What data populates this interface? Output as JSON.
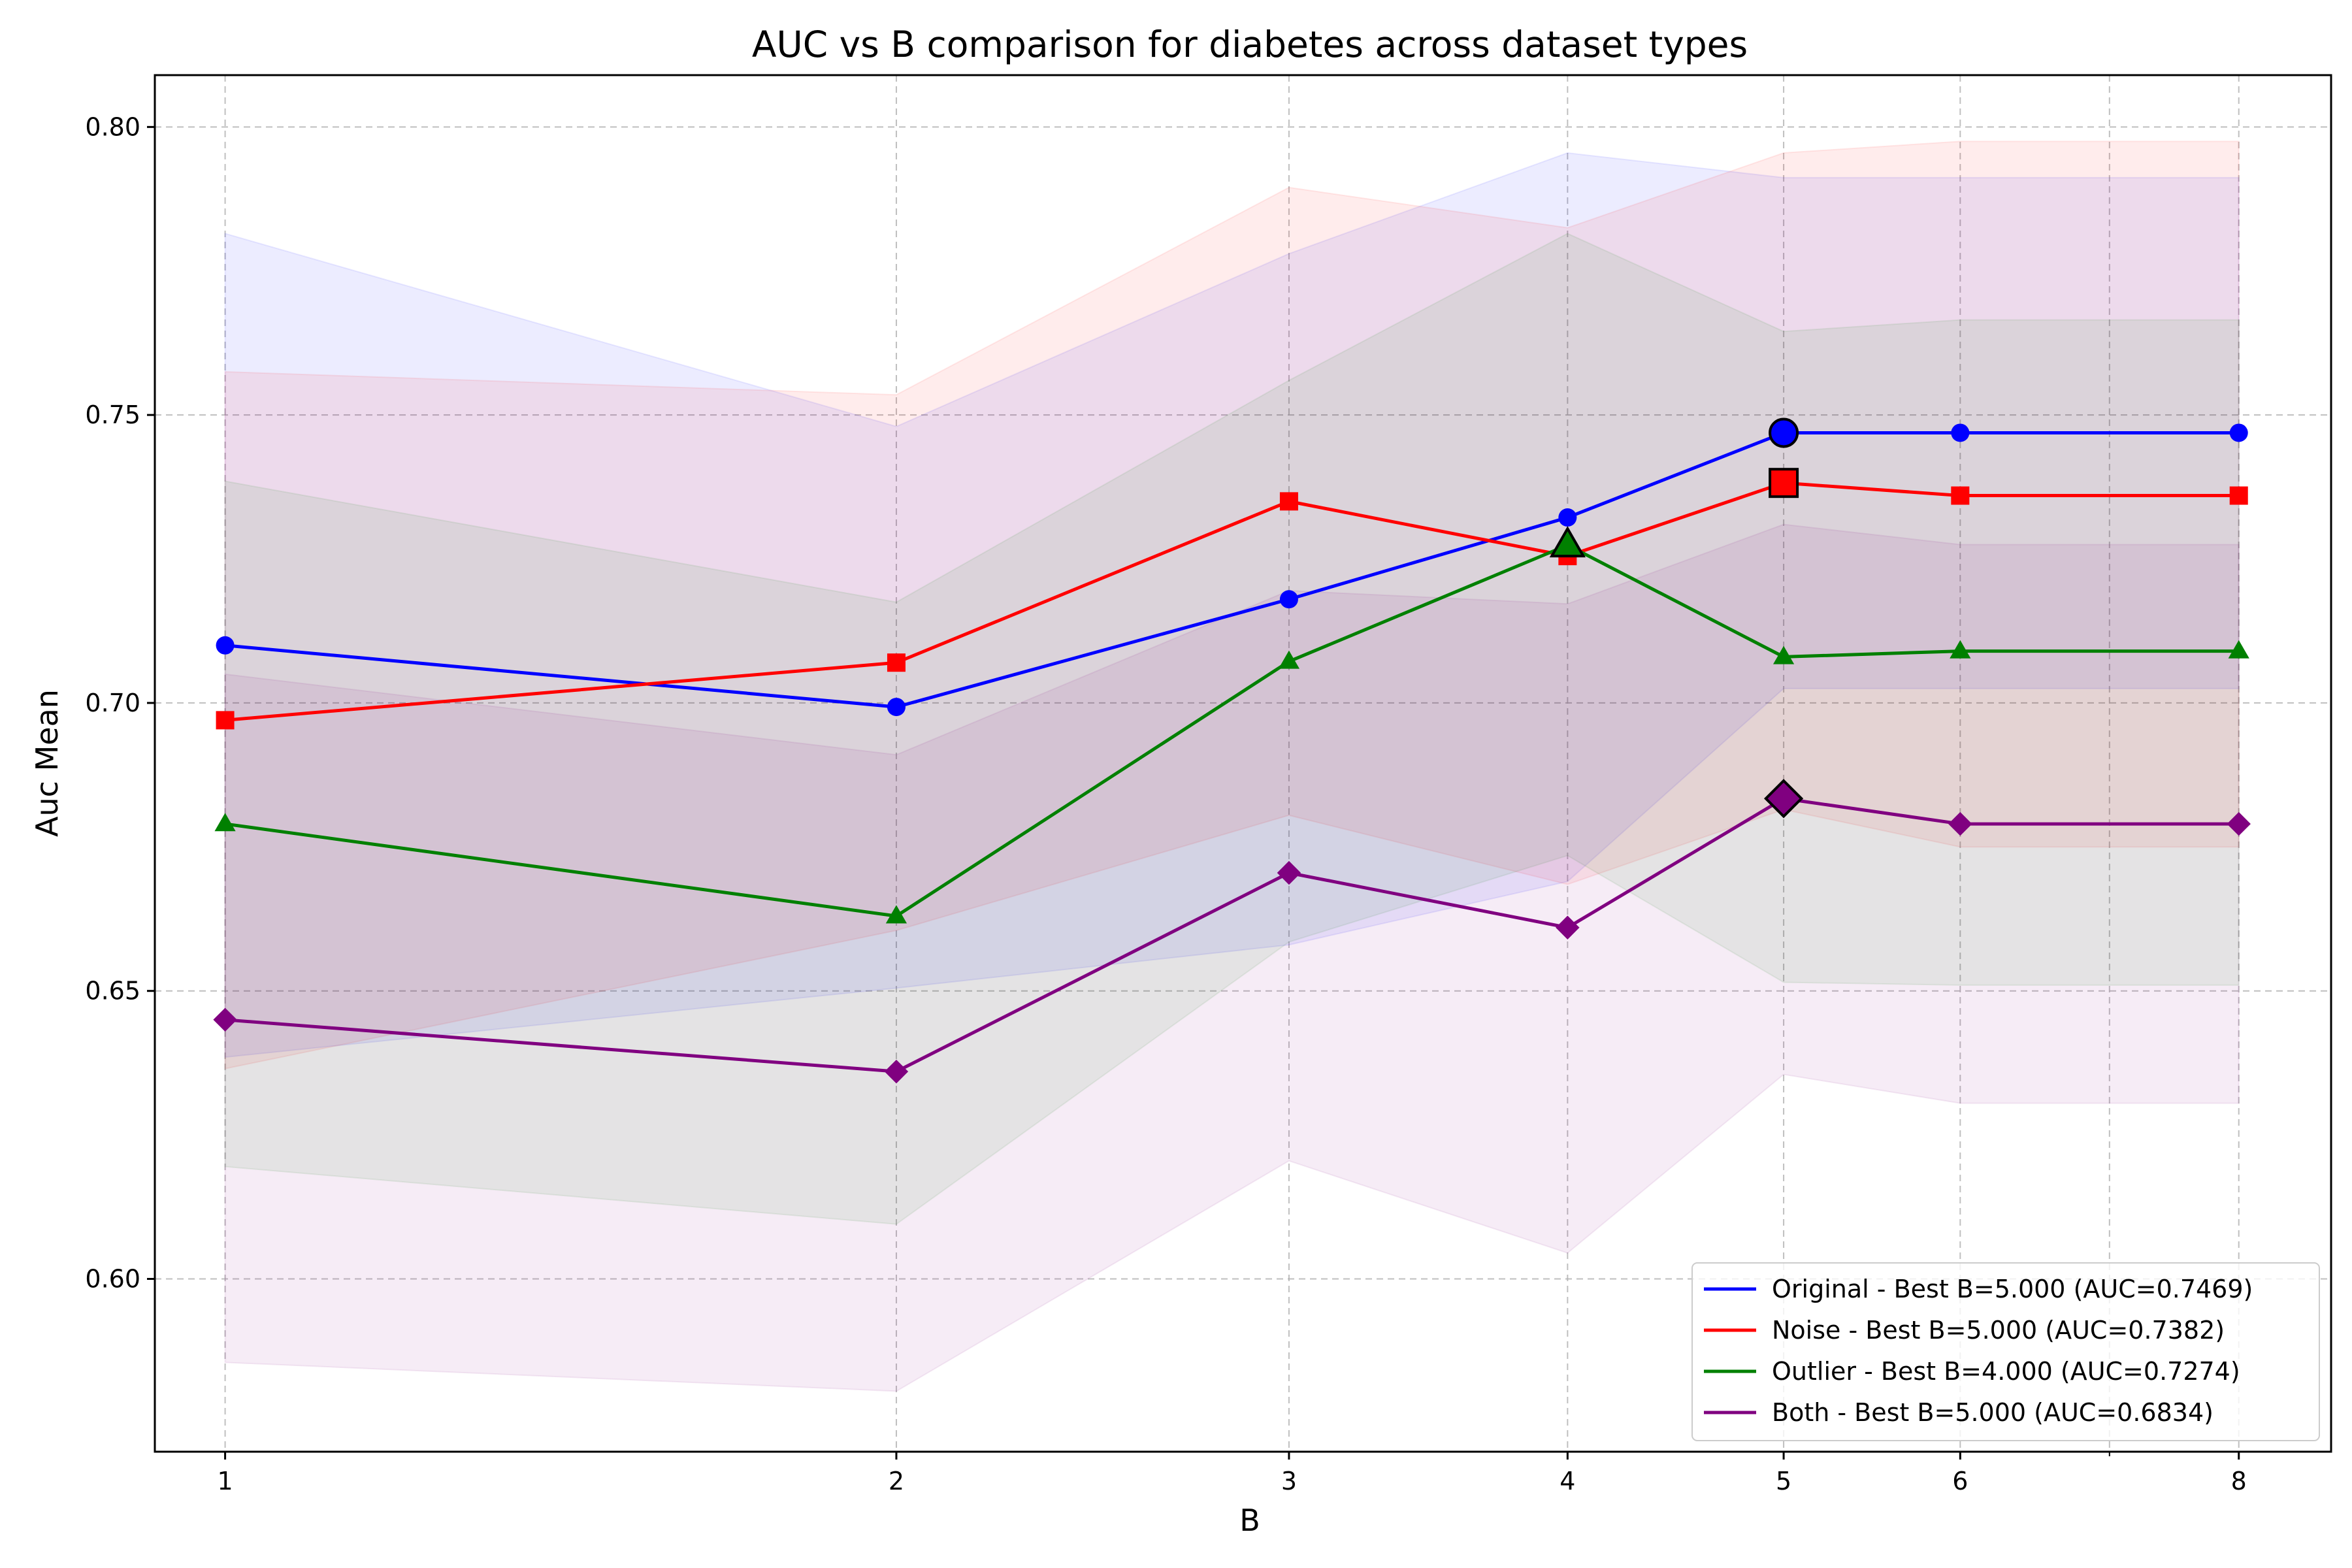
{
  "chart_data": {
    "type": "line",
    "title": "AUC vs B comparison for diabetes across dataset types",
    "xlabel": "B",
    "ylabel": "Auc Mean",
    "x_scale": "log",
    "x": [
      1,
      2,
      3,
      4,
      5,
      6,
      8
    ],
    "x_tick_labels": [
      "1",
      "2",
      "3",
      "4",
      "5",
      "6",
      "8"
    ],
    "xlim": [
      0.93,
      8.8
    ],
    "ylim": [
      0.57,
      0.809
    ],
    "y_ticks": [
      0.6,
      0.65,
      0.7,
      0.75,
      0.8
    ],
    "y_tick_labels": [
      "0.60",
      "0.65",
      "0.70",
      "0.75",
      "0.80"
    ],
    "grid": true,
    "legend_position": "lower-right",
    "series": [
      {
        "name": "Original - Best B=5.000 (AUC=0.7469)",
        "color": "#0000ff",
        "marker": "circle",
        "values": [
          0.71,
          0.6993,
          0.718,
          0.7322,
          0.7469,
          0.7469,
          0.7469
        ],
        "lower": [
          0.6385,
          0.6505,
          0.658,
          0.669,
          0.7025,
          0.7025,
          0.7025
        ],
        "upper": [
          0.7815,
          0.748,
          0.778,
          0.7955,
          0.7912,
          0.7912,
          0.7912
        ],
        "best_x": 5,
        "best_value": 0.7469
      },
      {
        "name": "Noise - Best B=5.000 (AUC=0.7382)",
        "color": "#ff0000",
        "marker": "square",
        "values": [
          0.697,
          0.707,
          0.735,
          0.7255,
          0.7382,
          0.736,
          0.736
        ],
        "lower": [
          0.6365,
          0.6605,
          0.6805,
          0.6685,
          0.6815,
          0.675,
          0.675
        ],
        "upper": [
          0.7575,
          0.7535,
          0.7895,
          0.7825,
          0.7955,
          0.7975,
          0.7975
        ],
        "best_x": 5,
        "best_value": 0.7382
      },
      {
        "name": "Outlier - Best B=4.000 (AUC=0.7274)",
        "color": "#008000",
        "marker": "triangle",
        "values": [
          0.679,
          0.663,
          0.7072,
          0.7274,
          0.708,
          0.709,
          0.709
        ],
        "lower": [
          0.6195,
          0.6095,
          0.6585,
          0.6735,
          0.6515,
          0.651,
          0.651
        ],
        "upper": [
          0.7385,
          0.7175,
          0.756,
          0.7815,
          0.7645,
          0.7665,
          0.7665
        ],
        "best_x": 4,
        "best_value": 0.7274
      },
      {
        "name": "Both - Best B=5.000 (AUC=0.6834)",
        "color": "#800080",
        "marker": "diamond",
        "values": [
          0.645,
          0.636,
          0.6705,
          0.661,
          0.6834,
          0.679,
          0.679
        ],
        "lower": [
          0.5855,
          0.5805,
          0.6205,
          0.6045,
          0.6355,
          0.6305,
          0.6305
        ],
        "upper": [
          0.705,
          0.691,
          0.7195,
          0.7172,
          0.731,
          0.7275,
          0.7275
        ],
        "best_x": 5,
        "best_value": 0.6834
      }
    ]
  }
}
